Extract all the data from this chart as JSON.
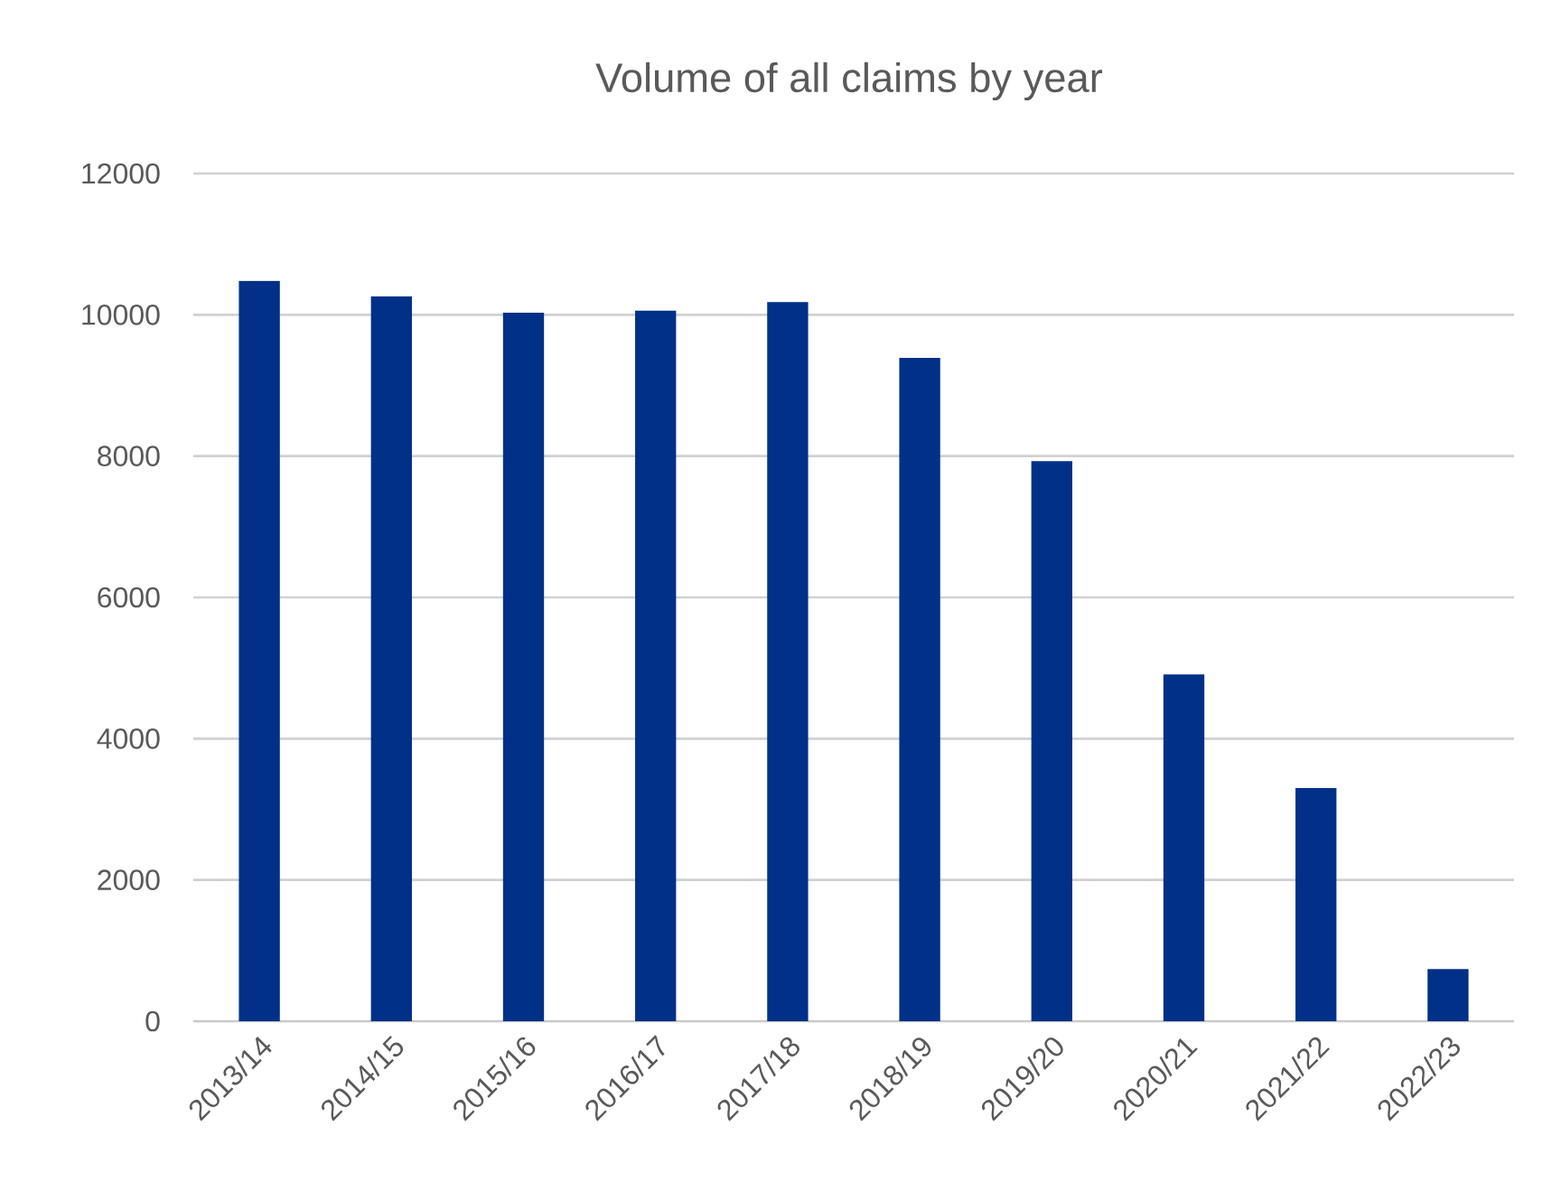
{
  "chart_data": {
    "type": "bar",
    "title": "Volume of all claims by year",
    "categories": [
      "2013/14",
      "2014/15",
      "2015/16",
      "2016/17",
      "2017/18",
      "2018/19",
      "2019/20",
      "2020/21",
      "2021/22",
      "2022/23"
    ],
    "values": [
      10480,
      10260,
      10030,
      10060,
      10180,
      9390,
      7930,
      4910,
      3300,
      740
    ],
    "color": "#003087",
    "ylim": [
      0,
      12000
    ],
    "yticks": [
      0,
      2000,
      4000,
      6000,
      8000,
      10000,
      12000
    ],
    "grid": "y"
  }
}
